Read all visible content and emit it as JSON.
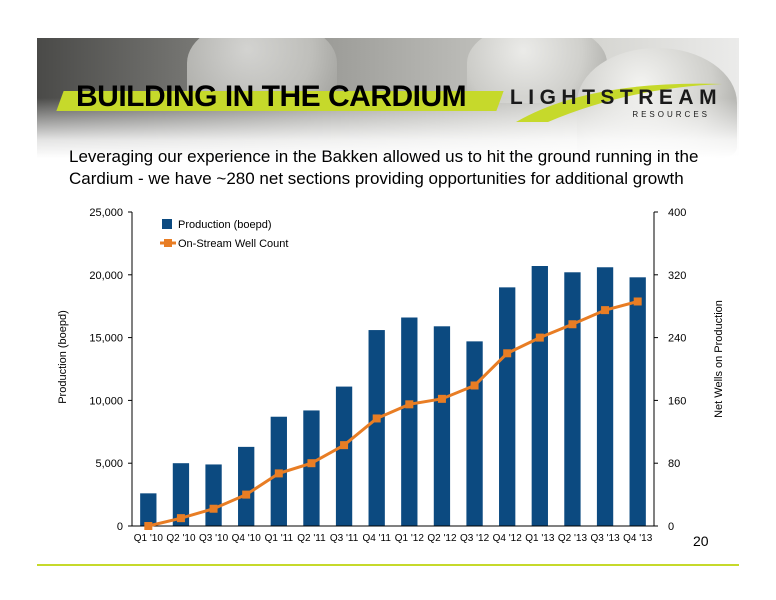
{
  "slide": {
    "title": "BUILDING IN THE CARDIUM",
    "subtitle": "Leveraging our experience in the Bakken allowed us to hit the ground running in the Cardium - we have ~280 net sections providing opportunities for additional growth",
    "page_number": "20",
    "accent_color": "#c6d92b"
  },
  "logo": {
    "name": "LIGHTSTREAM",
    "tagline": "RESOURCES"
  },
  "chart_data": {
    "type": "bar",
    "categories": [
      "Q1 '10",
      "Q2 '10",
      "Q3 '10",
      "Q4 '10",
      "Q1 '11",
      "Q2 '11",
      "Q3 '11",
      "Q4 '11",
      "Q1 '12",
      "Q2 '12",
      "Q3 '12",
      "Q4 '12",
      "Q1 '13",
      "Q2 '13",
      "Q3 '13",
      "Q4 '13"
    ],
    "series": [
      {
        "name": "Production (boepd)",
        "type": "bar",
        "axis": "left",
        "color": "#0c4a80",
        "values": [
          2600,
          5000,
          4900,
          6300,
          8700,
          9200,
          11100,
          15600,
          16600,
          15900,
          14700,
          19000,
          20700,
          20200,
          20600,
          19800
        ]
      },
      {
        "name": "On-Stream Well Count",
        "type": "line",
        "axis": "right",
        "color": "#e87d24",
        "marker": "square",
        "values": [
          0,
          10,
          22,
          40,
          67,
          80,
          103,
          137,
          155,
          162,
          179,
          220,
          240,
          257,
          275,
          286
        ]
      }
    ],
    "ylabel": "Production (boepd)",
    "y2label": "Net Wells on Production",
    "ylim": [
      0,
      25000
    ],
    "y2lim": [
      0,
      400
    ],
    "yticks": [
      "0",
      "5,000",
      "10,000",
      "15,000",
      "20,000",
      "25,000"
    ],
    "y2ticks": [
      "0",
      "80",
      "160",
      "240",
      "320",
      "400"
    ],
    "legend": "top-left",
    "grid": false
  }
}
